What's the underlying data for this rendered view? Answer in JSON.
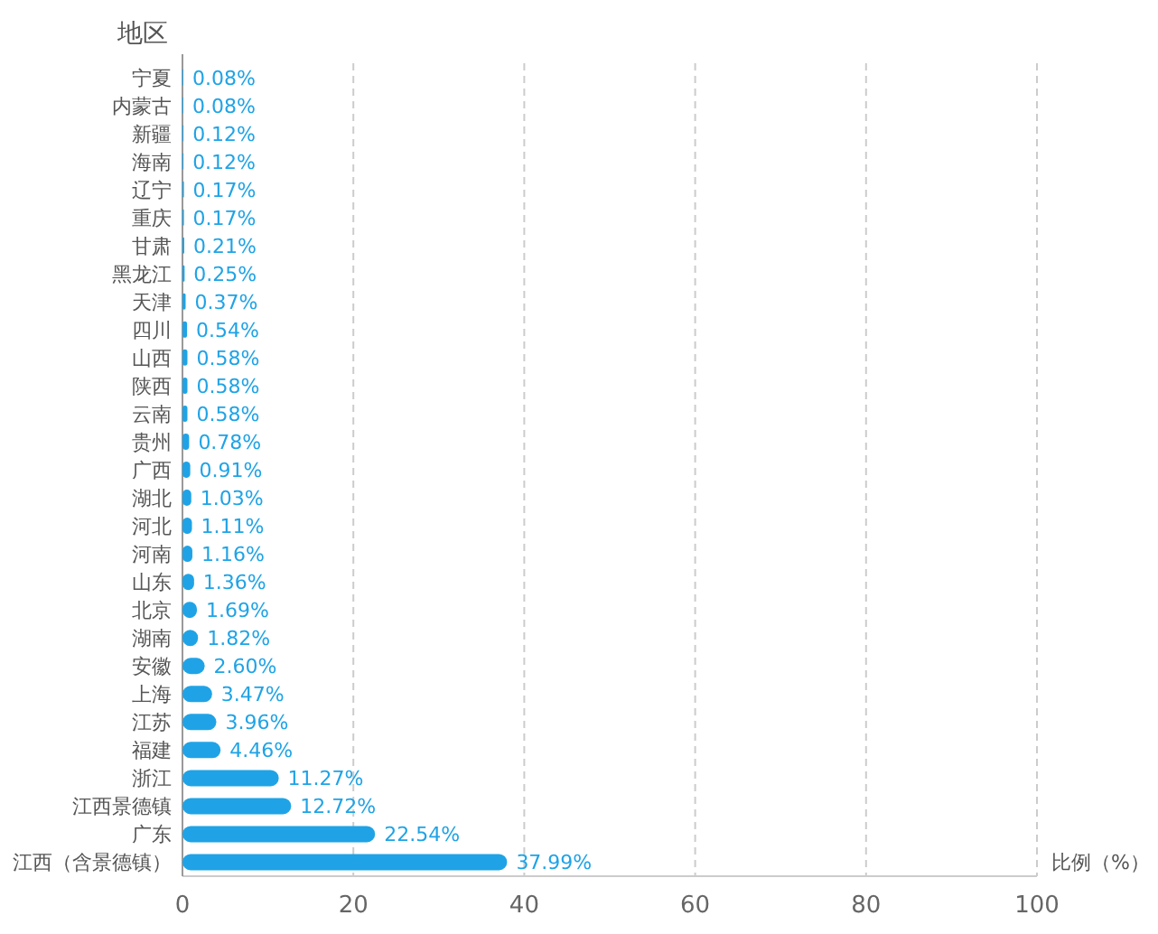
{
  "chart_data": {
    "type": "bar",
    "orientation": "horizontal",
    "ylabel": "地区",
    "xlabel": "比例（%）",
    "categories": [
      "宁夏",
      "内蒙古",
      "新疆",
      "海南",
      "辽宁",
      "重庆",
      "甘肃",
      "黑龙江",
      "天津",
      "四川",
      "山西",
      "陕西",
      "云南",
      "贵州",
      "广西",
      "湖北",
      "河北",
      "河南",
      "山东",
      "北京",
      "湖南",
      "安徽",
      "上海",
      "江苏",
      "福建",
      "浙江",
      "江西景德镇",
      "广东",
      "江西（含景德镇）"
    ],
    "values": [
      0.08,
      0.08,
      0.12,
      0.12,
      0.17,
      0.17,
      0.21,
      0.25,
      0.37,
      0.54,
      0.58,
      0.58,
      0.58,
      0.78,
      0.91,
      1.03,
      1.11,
      1.16,
      1.36,
      1.69,
      1.82,
      2.6,
      3.47,
      3.96,
      4.46,
      11.27,
      12.72,
      22.54,
      37.99
    ],
    "value_labels": [
      "0.08%",
      "0.08%",
      "0.12%",
      "0.12%",
      "0.17%",
      "0.17%",
      "0.21%",
      "0.25%",
      "0.37%",
      "0.54%",
      "0.58%",
      "0.58%",
      "0.58%",
      "0.78%",
      "0.91%",
      "1.03%",
      "1.11%",
      "1.16%",
      "1.36%",
      "1.69%",
      "1.82%",
      "2.60%",
      "3.47%",
      "3.96%",
      "4.46%",
      "11.27%",
      "12.72%",
      "22.54%",
      "37.99%"
    ],
    "color": "#1fa3e6",
    "xlim": [
      0,
      100
    ],
    "xticks": [
      0,
      20,
      40,
      60,
      80,
      100
    ],
    "grid": "x"
  }
}
